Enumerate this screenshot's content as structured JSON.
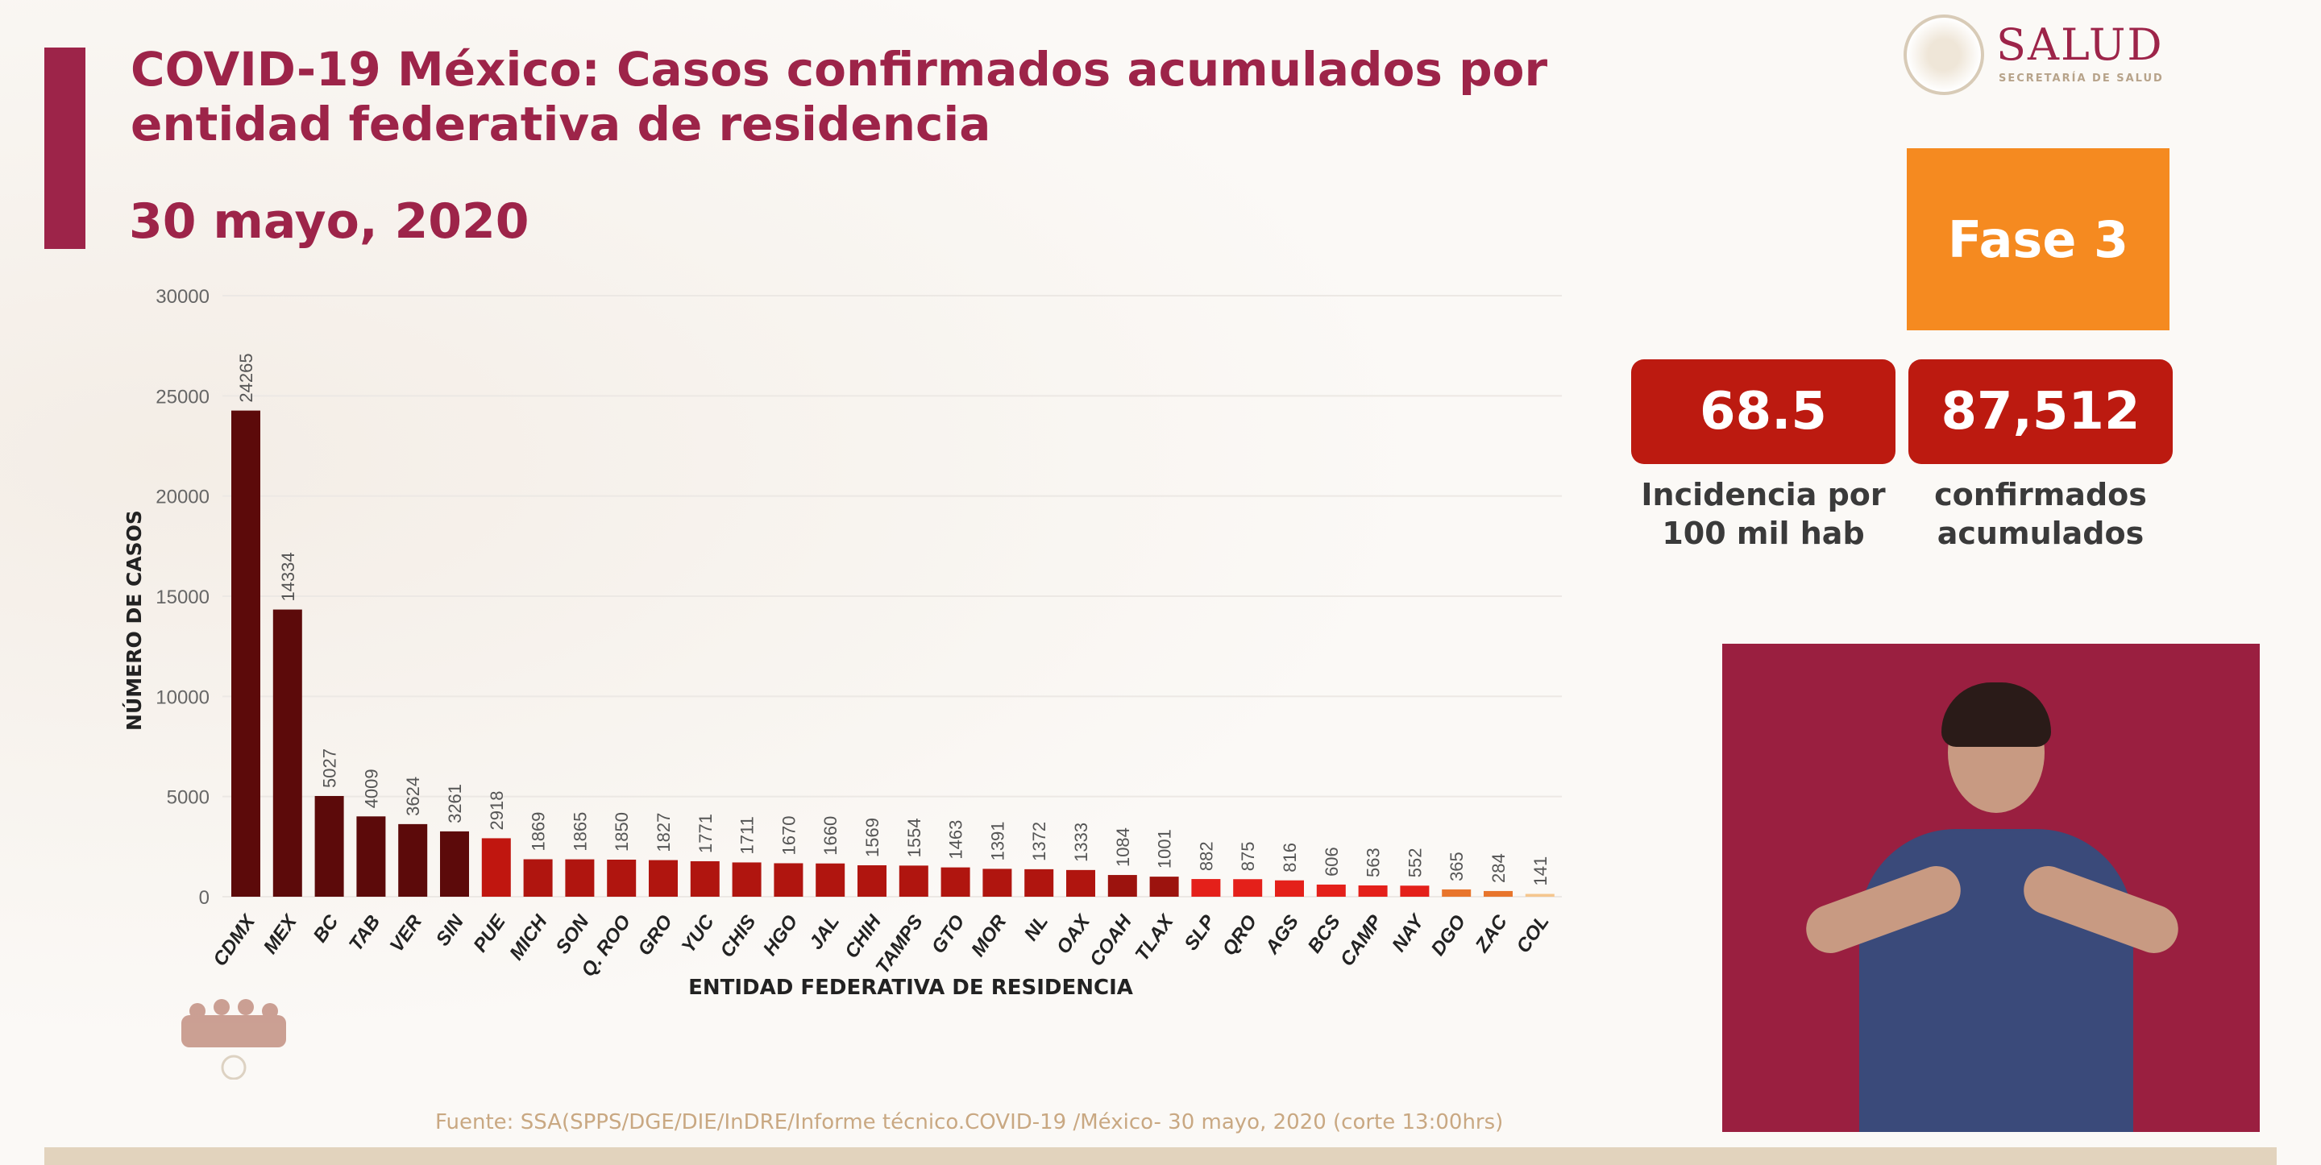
{
  "header": {
    "title": "COVID-19 México: Casos confirmados acumulados por entidad federativa de residencia",
    "date": "30 mayo, 2020"
  },
  "logo": {
    "name": "SALUD",
    "subtitle": "SECRETARÍA DE SALUD"
  },
  "phase": {
    "label": "Fase 3",
    "color": "#F58A20"
  },
  "stats": [
    {
      "value": "68.5",
      "label_line1": "Incidencia por",
      "label_line2": "100 mil hab"
    },
    {
      "value": "87,512",
      "label_line1": "confirmados",
      "label_line2": "acumulados"
    }
  ],
  "footer": {
    "source": "Fuente: SSA(SPPS/DGE/DIE/InDRE/Informe técnico.COVID-19 /México- 30 mayo, 2020 (corte 13:00hrs)"
  },
  "chart_data": {
    "type": "bar",
    "title": "",
    "xlabel": "ENTIDAD FEDERATIVA DE RESIDENCIA",
    "ylabel": "NÚMERO DE CASOS",
    "ylim": [
      0,
      30000
    ],
    "yticks": [
      0,
      5000,
      10000,
      15000,
      20000,
      25000,
      30000
    ],
    "grid": true,
    "categories": [
      "CDMX",
      "MEX",
      "BC",
      "TAB",
      "VER",
      "SIN",
      "PUE",
      "MICH",
      "SON",
      "Q. ROO",
      "GRO",
      "YUC",
      "CHIS",
      "HGO",
      "JAL",
      "CHIH",
      "TAMPS",
      "GTO",
      "MOR",
      "NL",
      "OAX",
      "COAH",
      "TLAX",
      "SLP",
      "QRO",
      "AGS",
      "BCS",
      "CAMP",
      "NAY",
      "DGO",
      "ZAC",
      "COL"
    ],
    "values": [
      24265,
      14334,
      5027,
      4009,
      3624,
      3261,
      2918,
      1869,
      1865,
      1850,
      1827,
      1771,
      1711,
      1670,
      1660,
      1569,
      1554,
      1463,
      1391,
      1372,
      1333,
      1084,
      1001,
      882,
      875,
      816,
      606,
      563,
      552,
      365,
      284,
      141
    ],
    "colors": [
      "#5c0a0a",
      "#5c0a0a",
      "#5c0a0a",
      "#5c0a0a",
      "#5c0a0a",
      "#5c0a0a",
      "#c0160f",
      "#b0150f",
      "#b0150f",
      "#b0150f",
      "#b0150f",
      "#b0150f",
      "#b0150f",
      "#b0150f",
      "#b0150f",
      "#b0150f",
      "#b0150f",
      "#b0150f",
      "#b0150f",
      "#b0150f",
      "#b0150f",
      "#9c130e",
      "#9c130e",
      "#e4201a",
      "#e4201a",
      "#e4201a",
      "#e4201a",
      "#e4201a",
      "#e4201a",
      "#e8752c",
      "#e8752c",
      "#f5c68e"
    ]
  }
}
